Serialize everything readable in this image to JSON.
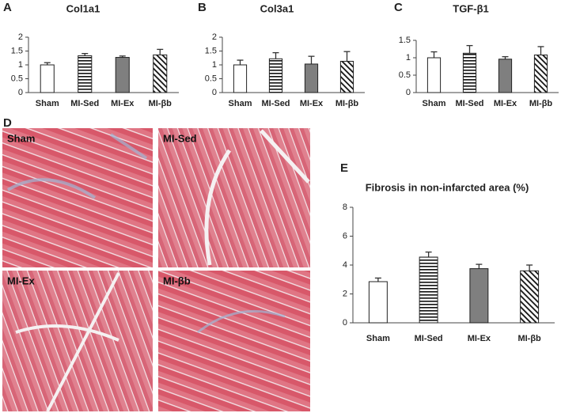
{
  "chart_data": [
    {
      "type": "bar",
      "panel_label": "A",
      "title": "Col1a1",
      "categories": [
        "Sham",
        "MI-Sed",
        "MI-Ex",
        "MI-βb"
      ],
      "values": [
        1.0,
        1.33,
        1.27,
        1.36
      ],
      "errors": [
        0.08,
        0.08,
        0.05,
        0.2
      ],
      "fills": [
        "open",
        "horizontal-stripes",
        "solid-gray",
        "diagonal-stripes"
      ],
      "ylim": [
        0,
        2
      ],
      "yticks": [
        0,
        0.5,
        1,
        1.5,
        2
      ]
    },
    {
      "type": "bar",
      "panel_label": "B",
      "title": "Col3a1",
      "categories": [
        "Sham",
        "MI-Sed",
        "MI-Ex",
        "MI-βb"
      ],
      "values": [
        1.0,
        1.22,
        1.03,
        1.13
      ],
      "errors": [
        0.17,
        0.22,
        0.28,
        0.35
      ],
      "fills": [
        "open",
        "horizontal-stripes",
        "solid-gray",
        "diagonal-stripes"
      ],
      "ylim": [
        0,
        2
      ],
      "yticks": [
        0,
        0.5,
        1,
        1.5,
        2
      ]
    },
    {
      "type": "bar",
      "panel_label": "C",
      "title": "TGF-β1",
      "categories": [
        "Sham",
        "MI-Sed",
        "MI-Ex",
        "MI-βb"
      ],
      "values": [
        1.0,
        1.13,
        0.96,
        1.08
      ],
      "errors": [
        0.17,
        0.22,
        0.07,
        0.24
      ],
      "fills": [
        "open",
        "horizontal-stripes",
        "solid-gray",
        "diagonal-stripes"
      ],
      "ylim": [
        0,
        1.5
      ],
      "yticks": [
        0,
        0.5,
        1,
        1.5
      ]
    },
    {
      "type": "bar",
      "panel_label": "E",
      "title": "Fibrosis in non-infarcted area (%)",
      "categories": [
        "Sham",
        "MI-Sed",
        "MI-Ex",
        "MI-βb"
      ],
      "values": [
        2.85,
        4.55,
        3.75,
        3.6
      ],
      "errors": [
        0.25,
        0.35,
        0.3,
        0.4
      ],
      "fills": [
        "open",
        "horizontal-stripes",
        "solid-gray",
        "diagonal-stripes"
      ],
      "ylim": [
        0,
        8
      ],
      "yticks": [
        0,
        2,
        4,
        6,
        8
      ]
    }
  ],
  "histology": {
    "panel_label": "D",
    "images": [
      {
        "label": "Sham"
      },
      {
        "label": "MI-Sed"
      },
      {
        "label": "MI-Ex"
      },
      {
        "label": "MI-βb"
      }
    ]
  }
}
